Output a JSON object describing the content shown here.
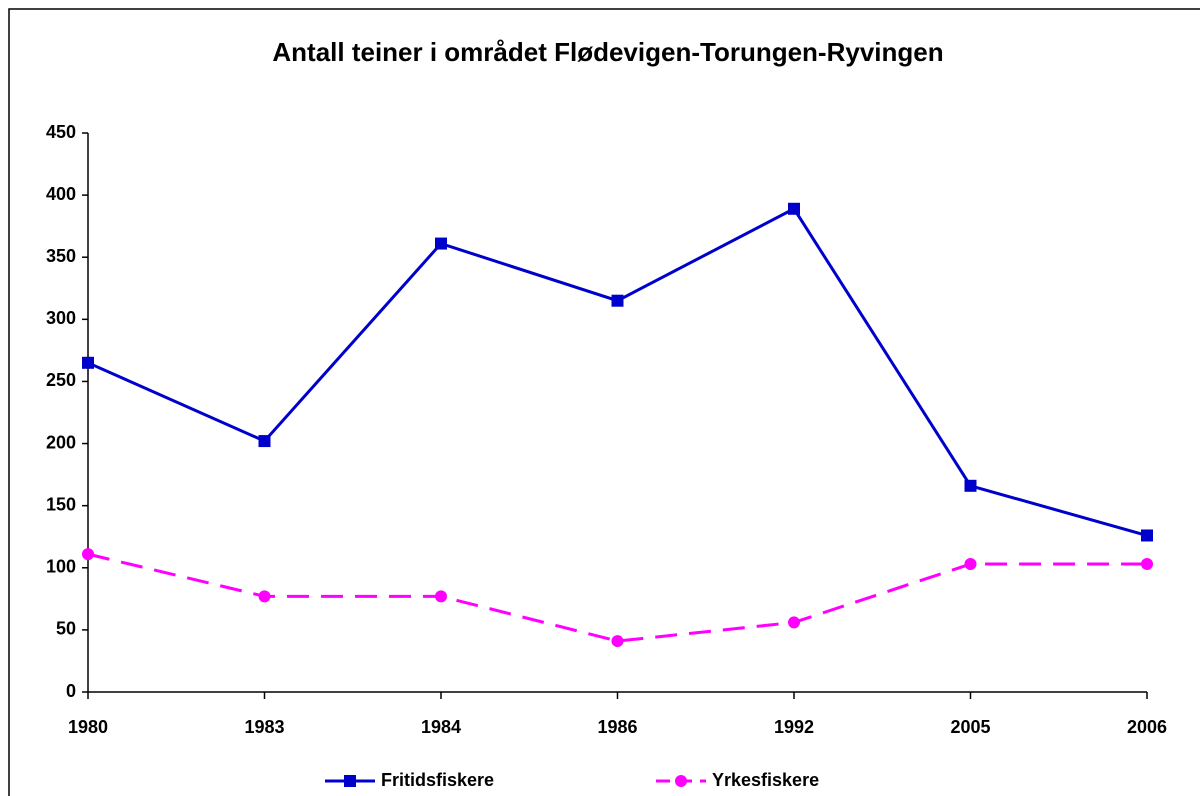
{
  "chart_data": {
    "type": "line",
    "title": "Antall teiner i området Flødevigen-Torungen-Ryvingen",
    "categories": [
      "1980",
      "1983",
      "1984",
      "1986",
      "1992",
      "2005",
      "2006"
    ],
    "series": [
      {
        "name": "Fritidsfiskere",
        "color": "#0000cc",
        "marker": "square",
        "dash": "solid",
        "values": [
          265,
          202,
          361,
          315,
          389,
          166,
          126
        ]
      },
      {
        "name": "Yrkesfiskere",
        "color": "#ff00ff",
        "marker": "circle",
        "dash": "dashed",
        "values": [
          111,
          77,
          77,
          41,
          56,
          103,
          103
        ]
      }
    ],
    "ylim": [
      0,
      450
    ],
    "yticks": [
      0,
      50,
      100,
      150,
      200,
      250,
      300,
      350,
      400,
      450
    ],
    "grid": false,
    "legend": "bottom"
  }
}
